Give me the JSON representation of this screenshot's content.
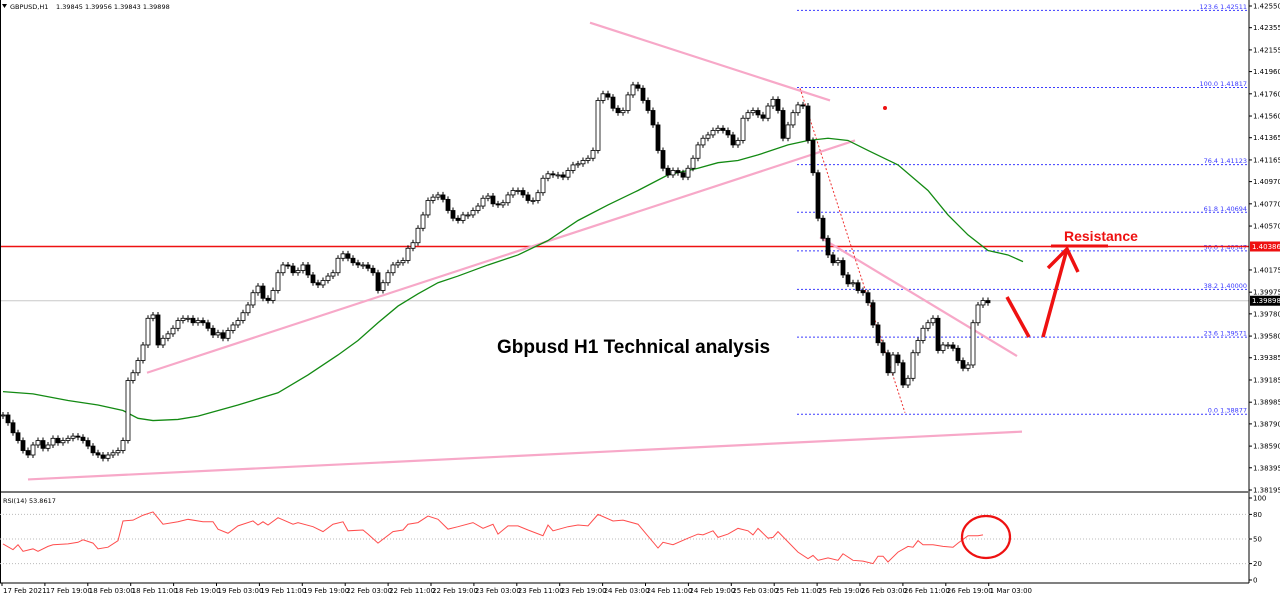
{
  "header": {
    "symbol": "GBPUSD,H1",
    "ohlc": "1.39845 1.39956 1.39843 1.39898"
  },
  "annotation_title": "Gbpusd H1 Technical analysis",
  "resistance_label": "Resistance",
  "colors": {
    "bull": "#ffffff",
    "bear": "#000000",
    "ma": "#138a13",
    "trendline": "#f7a8c8",
    "resistance": "#ee1111",
    "fib": "#3b3bff",
    "rsi": "#ff4d4d",
    "annotation": "#ee1111"
  },
  "chart_data": {
    "type": "candlestick",
    "symbol": "GBPUSD",
    "timeframe": "H1",
    "ylim": [
      1.38195,
      1.4255
    ],
    "price_ticks": [
      "1.42550",
      "1.42355",
      "1.42155",
      "1.41960",
      "1.41760",
      "1.41560",
      "1.41365",
      "1.41165",
      "1.40970",
      "1.40770",
      "1.40570",
      "1.40175",
      "1.39975",
      "1.39780",
      "1.39580",
      "1.39385",
      "1.39185",
      "1.38985",
      "1.38790",
      "1.38590",
      "1.38395",
      "1.38195"
    ],
    "time_ticks": [
      "17 Feb 2021",
      "17 Feb 19:00",
      "18 Feb 03:00",
      "18 Feb 11:00",
      "18 Feb 19:00",
      "19 Feb 03:00",
      "19 Feb 11:00",
      "19 Feb 19:00",
      "22 Feb 03:00",
      "22 Feb 11:00",
      "22 Feb 19:00",
      "23 Feb 03:00",
      "23 Feb 11:00",
      "23 Feb 19:00",
      "24 Feb 03:00",
      "24 Feb 11:00",
      "24 Feb 19:00",
      "25 Feb 03:00",
      "25 Feb 11:00",
      "25 Feb 19:00",
      "26 Feb 03:00",
      "26 Feb 11:00",
      "26 Feb 19:00",
      "1 Mar 03:00"
    ],
    "closes": [
      1.3887,
      1.388,
      1.3871,
      1.3864,
      1.3855,
      1.3851,
      1.386,
      1.3864,
      1.3857,
      1.386,
      1.3866,
      1.3862,
      1.3864,
      1.3866,
      1.3868,
      1.3867,
      1.3864,
      1.3859,
      1.3853,
      1.3851,
      1.3848,
      1.3851,
      1.3853,
      1.3855,
      1.3864,
      1.3918,
      1.3925,
      1.3936,
      1.395,
      1.3974,
      1.3977,
      1.395,
      1.3956,
      1.396,
      1.3965,
      1.3972,
      1.3974,
      1.3974,
      1.397,
      1.3972,
      1.397,
      1.3965,
      1.3959,
      1.3961,
      1.3956,
      1.3963,
      1.3968,
      1.3972,
      1.3979,
      1.3986,
      1.3997,
      1.4003,
      1.3992,
      1.399,
      1.3999,
      1.4015,
      1.4022,
      1.4021,
      1.4015,
      1.4017,
      1.4022,
      1.4013,
      1.4006,
      1.4004,
      1.4008,
      1.4012,
      1.4015,
      1.4028,
      1.4032,
      1.4028,
      1.4024,
      1.4022,
      1.4022,
      1.4019,
      1.4015,
      1.3999,
      1.4006,
      1.4015,
      1.4022,
      1.4024,
      1.4026,
      1.4037,
      1.4042,
      1.4055,
      1.4067,
      1.408,
      1.4083,
      1.4085,
      1.4081,
      1.4071,
      1.4064,
      1.4062,
      1.4067,
      1.4067,
      1.4071,
      1.4075,
      1.4082,
      1.4084,
      1.4077,
      1.4076,
      1.4078,
      1.4085,
      1.4089,
      1.4089,
      1.4085,
      1.408,
      1.408,
      1.4087,
      1.41,
      1.4104,
      1.4103,
      1.4103,
      1.4101,
      1.4107,
      1.4112,
      1.4113,
      1.4116,
      1.4118,
      1.4125,
      1.417,
      1.4176,
      1.4173,
      1.4163,
      1.4159,
      1.4161,
      1.4175,
      1.4184,
      1.4181,
      1.417,
      1.4161,
      1.4148,
      1.4125,
      1.4109,
      1.4103,
      1.4107,
      1.4105,
      1.4101,
      1.4109,
      1.4118,
      1.413,
      1.4136,
      1.4139,
      1.4143,
      1.4145,
      1.4143,
      1.4139,
      1.413,
      1.4134,
      1.4154,
      1.4159,
      1.4161,
      1.4157,
      1.4154,
      1.4165,
      1.4171,
      1.4161,
      1.4136,
      1.4148,
      1.4159,
      1.4166,
      1.4165,
      1.4134,
      1.4105,
      1.4064,
      1.4046,
      1.4031,
      1.4024,
      1.4026,
      1.4013,
      1.4005,
      1.4006,
      1.3999,
      1.3997,
      1.3988,
      1.3968,
      1.3952,
      1.3943,
      1.3925,
      1.3941,
      1.3934,
      1.3914,
      1.392,
      1.3943,
      1.3954,
      1.3965,
      1.397,
      1.3974,
      1.3945,
      1.395,
      1.395,
      1.3947,
      1.3936,
      1.3929,
      1.3932,
      1.397,
      1.3986,
      1.399,
      1.3988
    ],
    "current_price": "1.39898",
    "moving_average": [
      [
        0,
        1.3908
      ],
      [
        6,
        1.3906
      ],
      [
        13,
        1.39
      ],
      [
        19,
        1.3896
      ],
      [
        24,
        1.3891
      ],
      [
        27,
        1.3884
      ],
      [
        30,
        1.3882
      ],
      [
        35,
        1.3883
      ],
      [
        39,
        1.3886
      ],
      [
        47,
        1.3896
      ],
      [
        55,
        1.3907
      ],
      [
        61,
        1.3923
      ],
      [
        67,
        1.3941
      ],
      [
        71,
        1.3954
      ],
      [
        75,
        1.397
      ],
      [
        79,
        1.3985
      ],
      [
        83,
        1.3996
      ],
      [
        87,
        1.4006
      ],
      [
        91,
        1.4012
      ],
      [
        97,
        1.4022
      ],
      [
        103,
        1.4031
      ],
      [
        109,
        1.4044
      ],
      [
        115,
        1.4062
      ],
      [
        121,
        1.4076
      ],
      [
        127,
        1.4089
      ],
      [
        133,
        1.4103
      ],
      [
        139,
        1.4109
      ],
      [
        143,
        1.4114
      ],
      [
        147,
        1.4116
      ],
      [
        151,
        1.4121
      ],
      [
        157,
        1.413
      ],
      [
        161,
        1.4134
      ],
      [
        165,
        1.4136
      ],
      [
        169,
        1.4134
      ],
      [
        173,
        1.4125
      ],
      [
        179,
        1.4112
      ],
      [
        185,
        1.4089
      ],
      [
        189,
        1.4067
      ],
      [
        193,
        1.4049
      ],
      [
        197,
        1.4035
      ],
      [
        201,
        1.4031
      ],
      [
        204,
        1.4025
      ]
    ],
    "trendlines": [
      {
        "from": [
          117.4,
          1.424
        ],
        "to": [
          165.4,
          1.417
        ]
      },
      {
        "from": [
          28.8,
          1.3925
        ],
        "to": [
          170.4,
          1.4134
        ]
      },
      {
        "from": [
          5,
          1.3829
        ],
        "to": [
          203.8,
          1.3872
        ]
      },
      {
        "from": [
          163.4,
          1.4047
        ],
        "to": [
          202.8,
          1.394
        ]
      }
    ],
    "swing_line": {
      "from": [
        159.4,
        1.4181
      ],
      "to": [
        180.4,
        1.3889
      ]
    },
    "resistance": {
      "price": 1.40386,
      "label": "1.40386"
    },
    "fibonacci": [
      {
        "level": "123.6",
        "price": "1.42511"
      },
      {
        "level": "100.0",
        "price": "1.41817"
      },
      {
        "level": "76.4",
        "price": "1.41123"
      },
      {
        "level": "61.8",
        "price": "1.40694"
      },
      {
        "level": "50.0",
        "price": "1.40347"
      },
      {
        "level": "38.2",
        "price": "1.40000"
      },
      {
        "level": "23.6",
        "price": "1.39571"
      },
      {
        "level": "0.0",
        "price": "1.38877"
      }
    ],
    "rsi": {
      "label": "RSI(14) 53.8617",
      "ylim": [
        0,
        100
      ],
      "ticks": [
        "100",
        "80",
        "50",
        "20",
        "0"
      ],
      "levels": [
        80,
        50,
        20
      ],
      "points": [
        [
          0,
          44
        ],
        [
          2,
          37
        ],
        [
          3,
          43
        ],
        [
          4,
          35
        ],
        [
          6,
          38
        ],
        [
          7,
          35
        ],
        [
          9,
          41
        ],
        [
          10,
          43
        ],
        [
          13,
          44
        ],
        [
          15,
          46
        ],
        [
          16,
          49
        ],
        [
          18,
          45
        ],
        [
          19,
          38
        ],
        [
          21,
          40
        ],
        [
          23,
          48
        ],
        [
          24,
          72
        ],
        [
          26,
          73
        ],
        [
          28,
          79
        ],
        [
          30,
          83
        ],
        [
          32,
          68
        ],
        [
          35,
          71
        ],
        [
          37,
          74
        ],
        [
          40,
          71
        ],
        [
          42,
          71
        ],
        [
          43,
          62
        ],
        [
          45,
          57
        ],
        [
          47,
          66
        ],
        [
          50,
          72
        ],
        [
          51,
          67
        ],
        [
          52,
          71
        ],
        [
          53,
          67
        ],
        [
          55,
          76
        ],
        [
          58,
          68
        ],
        [
          59,
          70
        ],
        [
          62,
          65
        ],
        [
          64,
          59
        ],
        [
          66,
          68
        ],
        [
          68,
          71
        ],
        [
          69,
          60
        ],
        [
          72,
          61
        ],
        [
          73,
          56
        ],
        [
          75,
          45
        ],
        [
          78,
          59
        ],
        [
          80,
          61
        ],
        [
          81,
          68
        ],
        [
          83,
          70
        ],
        [
          85,
          78
        ],
        [
          87,
          74
        ],
        [
          89,
          62
        ],
        [
          91,
          65
        ],
        [
          94,
          70
        ],
        [
          96,
          63
        ],
        [
          98,
          68
        ],
        [
          99,
          56
        ],
        [
          101,
          66
        ],
        [
          103,
          66
        ],
        [
          105,
          61
        ],
        [
          108,
          54
        ],
        [
          109,
          67
        ],
        [
          110,
          60
        ],
        [
          113,
          65
        ],
        [
          115,
          67
        ],
        [
          117,
          66
        ],
        [
          119,
          80
        ],
        [
          122,
          72
        ],
        [
          124,
          73
        ],
        [
          127,
          68
        ],
        [
          131,
          39
        ],
        [
          132,
          46
        ],
        [
          134,
          43
        ],
        [
          137,
          51
        ],
        [
          139,
          56
        ],
        [
          140,
          55
        ],
        [
          142,
          60
        ],
        [
          143,
          52
        ],
        [
          145,
          56
        ],
        [
          147,
          63
        ],
        [
          149,
          60
        ],
        [
          150,
          55
        ],
        [
          151,
          63
        ],
        [
          153,
          51
        ],
        [
          154,
          52
        ],
        [
          155,
          59
        ],
        [
          159,
          34
        ],
        [
          161,
          26
        ],
        [
          162,
          30
        ],
        [
          163,
          24
        ],
        [
          165,
          27
        ],
        [
          167,
          24
        ],
        [
          168,
          32
        ],
        [
          170,
          24
        ],
        [
          172,
          23
        ],
        [
          174,
          20
        ],
        [
          175,
          29
        ],
        [
          176,
          29
        ],
        [
          177,
          22
        ],
        [
          179,
          34
        ],
        [
          181,
          41
        ],
        [
          182,
          40
        ],
        [
          183,
          48
        ],
        [
          184,
          43
        ],
        [
          186,
          43
        ],
        [
          188,
          41
        ],
        [
          190,
          40
        ],
        [
          191,
          45
        ],
        [
          193,
          54
        ],
        [
          195,
          54
        ],
        [
          196,
          55
        ]
      ]
    }
  }
}
